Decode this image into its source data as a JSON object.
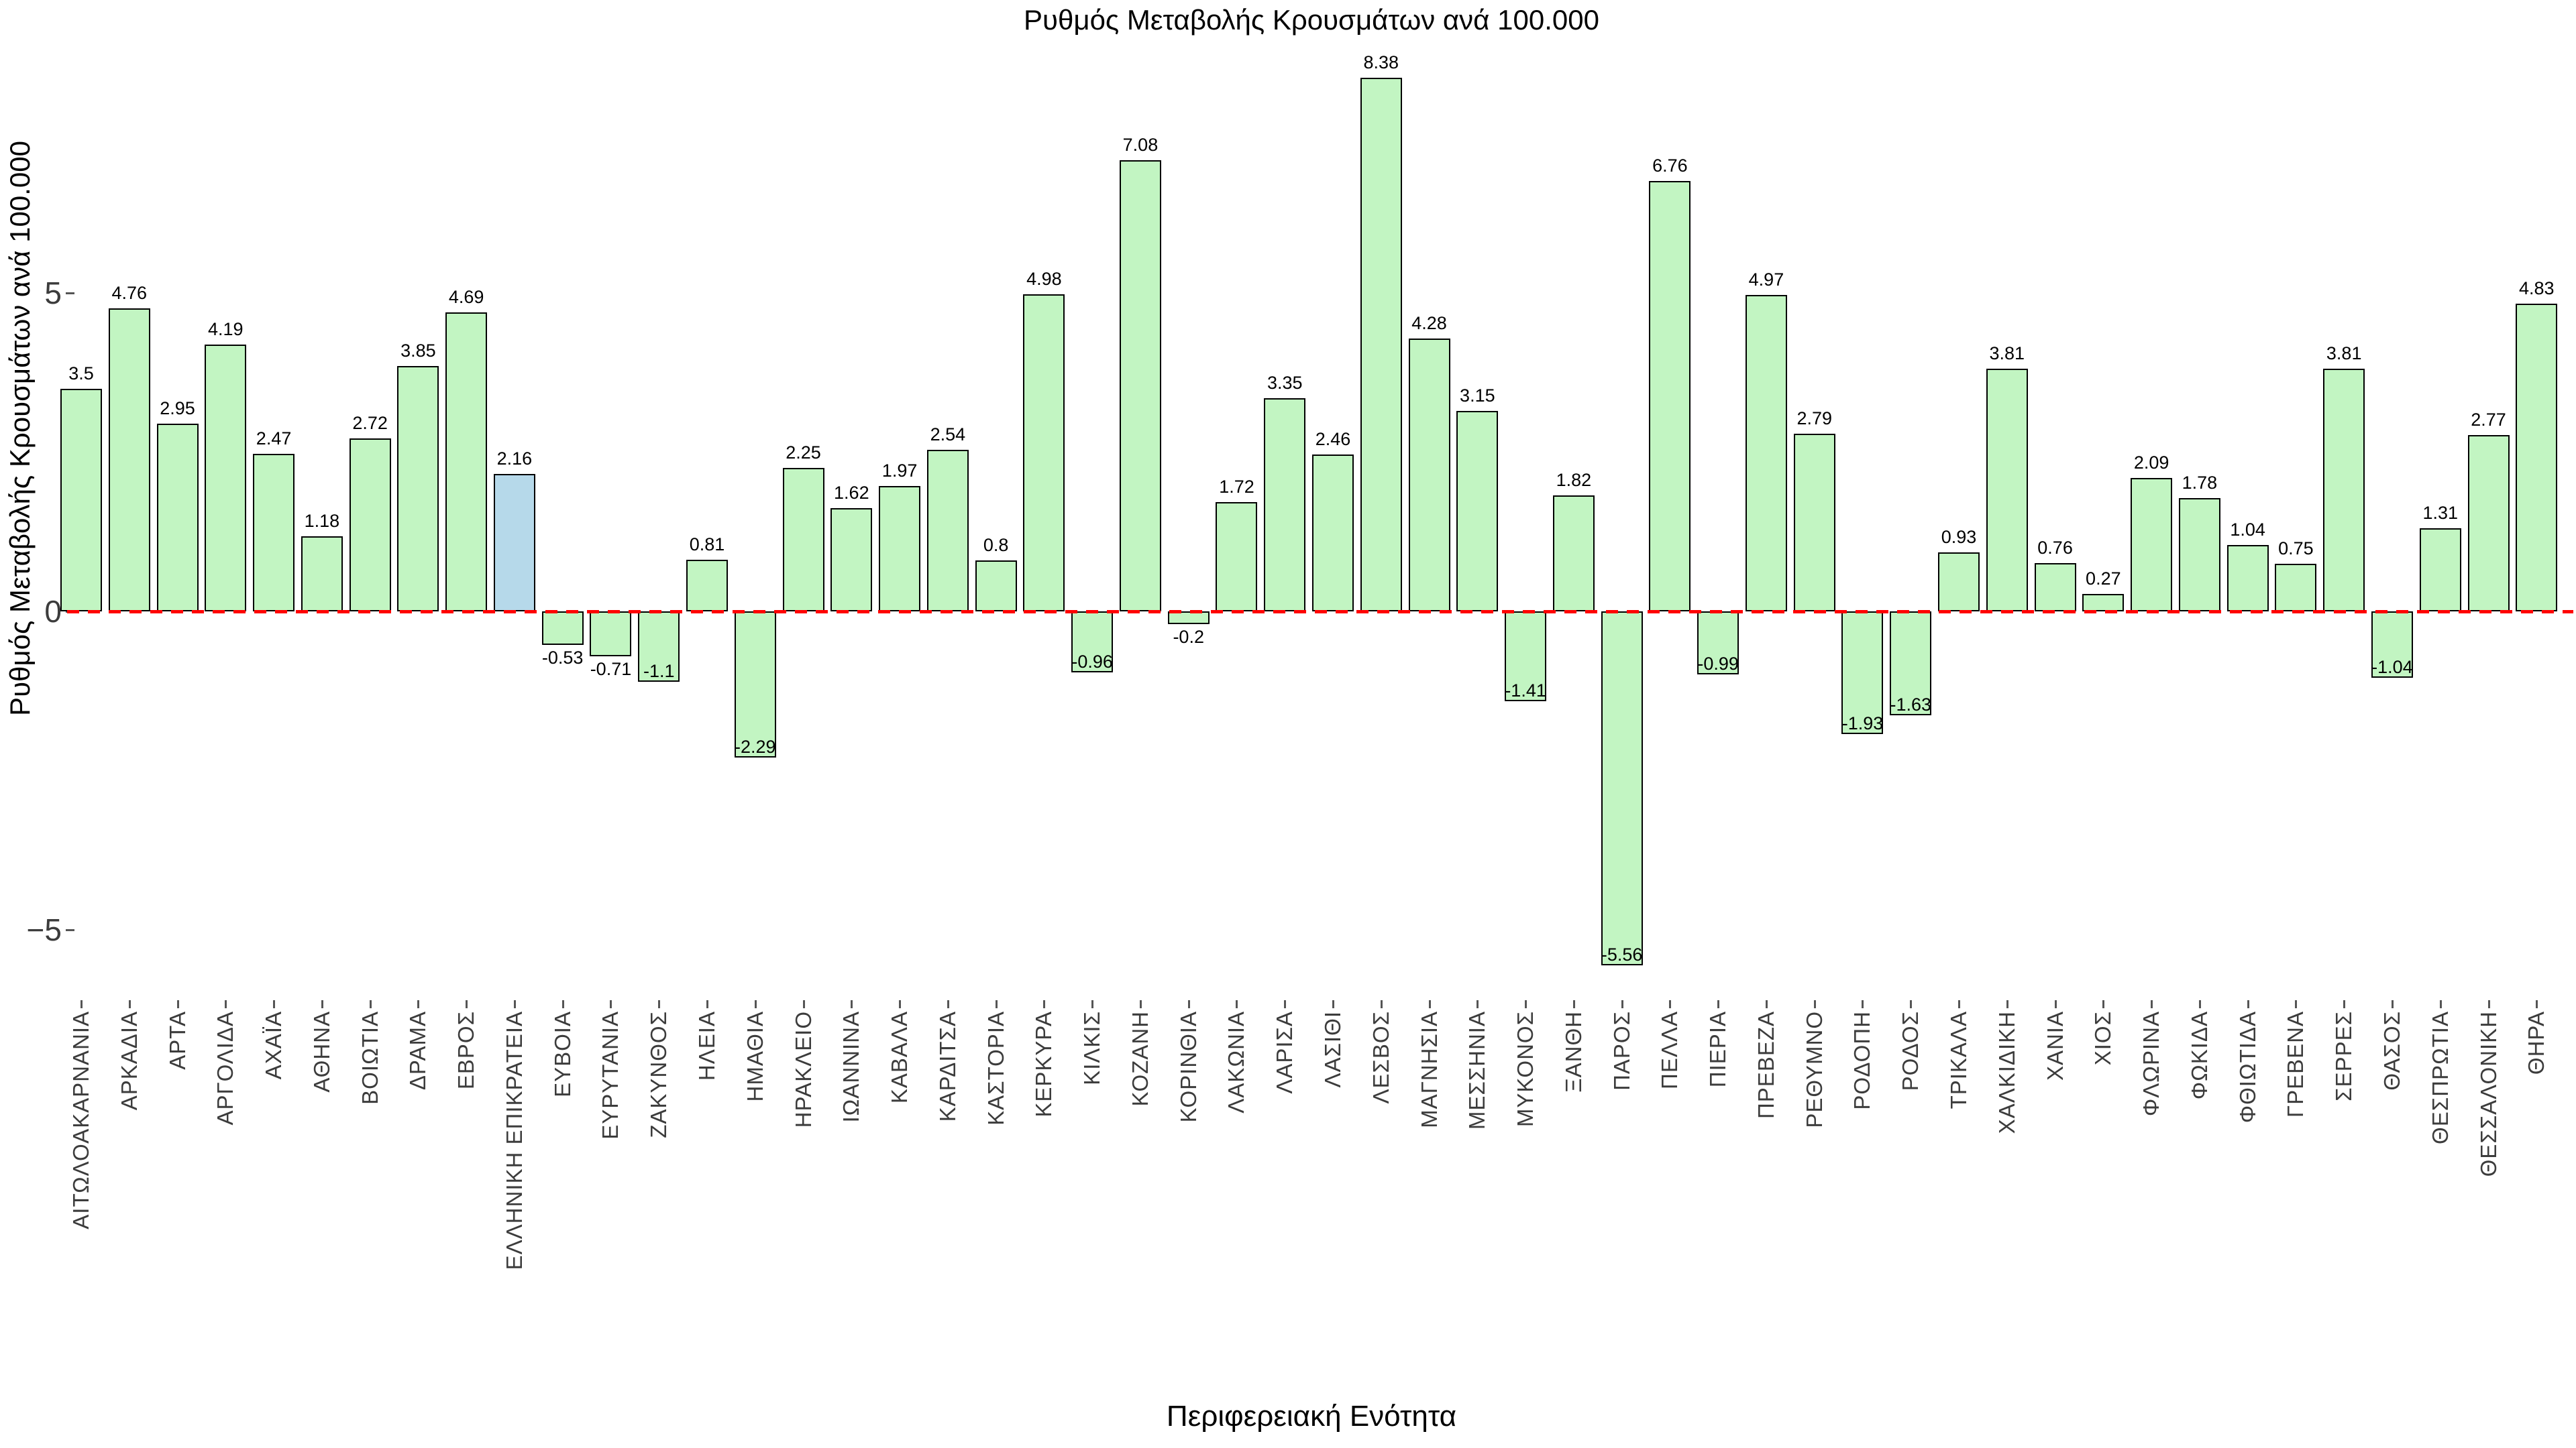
{
  "chart_data": {
    "type": "bar",
    "title": "Ρυθμός Μεταβολής Κρουσμάτων ανά 100.000",
    "xlabel": "Περιφερειακή Ενότητα",
    "ylabel": "Ρυθμός Μεταβολής Κρουσμάτων ανά 100.000",
    "yticks": [
      "5",
      "0",
      "−5"
    ],
    "ytick_values": [
      5,
      0,
      -5
    ],
    "ylim": [
      -6.2,
      8.8
    ],
    "grid": false,
    "legend": "none",
    "zero_reference_line": true,
    "categories": [
      "ΑΙΤΩΛΟΑΚΑΡΝΑΝΙΑ",
      "ΑΡΚΑΔΙΑ",
      "ΑΡΤΑ",
      "ΑΡΓΟΛΙΔΑ",
      "ΑΧΑΪΑ",
      "ΑΘΗΝΑ",
      "ΒΟΙΩΤΙΑ",
      "ΔΡΑΜΑ",
      "ΕΒΡΟΣ",
      "ΕΛΛΗΝΙΚΗ ΕΠΙΚΡΑΤΕΙΑ",
      "ΕΥΒΟΙΑ",
      "ΕΥΡΥΤΑΝΙΑ",
      "ΖΑΚΥΝΘΟΣ",
      "ΗΛΕΙΑ",
      "ΗΜΑΘΙΑ",
      "ΗΡΑΚΛΕΙΟ",
      "ΙΩΑΝΝΙΝΑ",
      "ΚΑΒΑΛΑ",
      "ΚΑΡΔΙΤΣΑ",
      "ΚΑΣΤΟΡΙΑ",
      "ΚΕΡΚΥΡΑ",
      "ΚΙΛΚΙΣ",
      "ΚΟΖΑΝΗ",
      "ΚΟΡΙΝΘΙΑ",
      "ΛΑΚΩΝΙΑ",
      "ΛΑΡΙΣΑ",
      "ΛΑΣΙΘΙ",
      "ΛΕΣΒΟΣ",
      "ΜΑΓΝΗΣΙΑ",
      "ΜΕΣΣΗΝΙΑ",
      "ΜΥΚΟΝΟΣ",
      "ΞΑΝΘΗ",
      "ΠΑΡΟΣ",
      "ΠΕΛΛΑ",
      "ΠΙΕΡΙΑ",
      "ΠΡΕΒΕΖΑ",
      "ΡΕΘΥΜΝΟ",
      "ΡΟΔΟΠΗ",
      "ΡΟΔΟΣ",
      "ΤΡΙΚΑΛΑ",
      "ΧΑΛΚΙΔΙΚΗ",
      "ΧΑΝΙΑ",
      "ΧΙΟΣ",
      "ΦΛΩΡΙΝΑ",
      "ΦΩΚΙΔΑ",
      "ΦΘΙΩΤΙΔΑ",
      "ΓΡΕΒΕΝΑ",
      "ΣΕΡΡΕΣ",
      "ΘΑΣΟΣ",
      "ΘΕΣΠΡΩΤΙΑ",
      "ΘΕΣΣΑΛΟΝΙΚΗ",
      "ΘΗΡΑ"
    ],
    "values": [
      3.5,
      4.76,
      2.95,
      4.19,
      2.47,
      1.18,
      2.72,
      3.85,
      4.69,
      2.16,
      -0.53,
      -0.71,
      -1.1,
      0.81,
      -2.29,
      2.25,
      1.62,
      1.97,
      2.54,
      0.8,
      4.98,
      -0.96,
      7.08,
      -0.2,
      1.72,
      3.35,
      2.46,
      8.38,
      4.28,
      3.15,
      -1.41,
      1.82,
      -5.56,
      6.76,
      -0.99,
      4.97,
      2.79,
      -1.93,
      -1.63,
      0.93,
      3.81,
      0.76,
      0.27,
      2.09,
      1.78,
      1.04,
      0.75,
      3.81,
      -1.04,
      1.31,
      2.77,
      4.83
    ],
    "bar_labels": [
      "3.5",
      "4.76",
      "2.95",
      "4.19",
      "2.47",
      "1.18",
      "2.72",
      "3.85",
      "4.69",
      "2.16",
      "-0.53",
      "-0.71",
      "-1.1",
      "0.81",
      "-2.29",
      "2.25",
      "1.62",
      "1.97",
      "2.54",
      "0.8",
      "4.98",
      "-0.96",
      "7.08",
      "-0.2",
      "1.72",
      "3.35",
      "2.46",
      "8.38",
      "4.28",
      "3.15",
      "-1.41",
      "1.82",
      "-5.56",
      "6.76",
      "-0.99",
      "4.97",
      "2.79",
      "-1.93",
      "-1.63",
      "0.93",
      "3.81",
      "0.76",
      "0.27",
      "2.09",
      "1.78",
      "1.04",
      "0.75",
      "3.81",
      "-1.04",
      "1.31",
      "2.77",
      "4.83"
    ],
    "highlight_category": "ΕΛΛΗΝΙΚΗ ΕΠΙΚΡΑΤΕΙΑ",
    "highlight_index": 9,
    "colors": {
      "bar_fill": "#c2f5c2",
      "bar_highlight_fill": "#b6d9ea",
      "bar_edge": "#000000",
      "zero_line": "#ff0000",
      "tick_label": "#3c3c3c",
      "value_label": "#000000",
      "axis_title": "#000000",
      "background": "#ffffff"
    }
  }
}
